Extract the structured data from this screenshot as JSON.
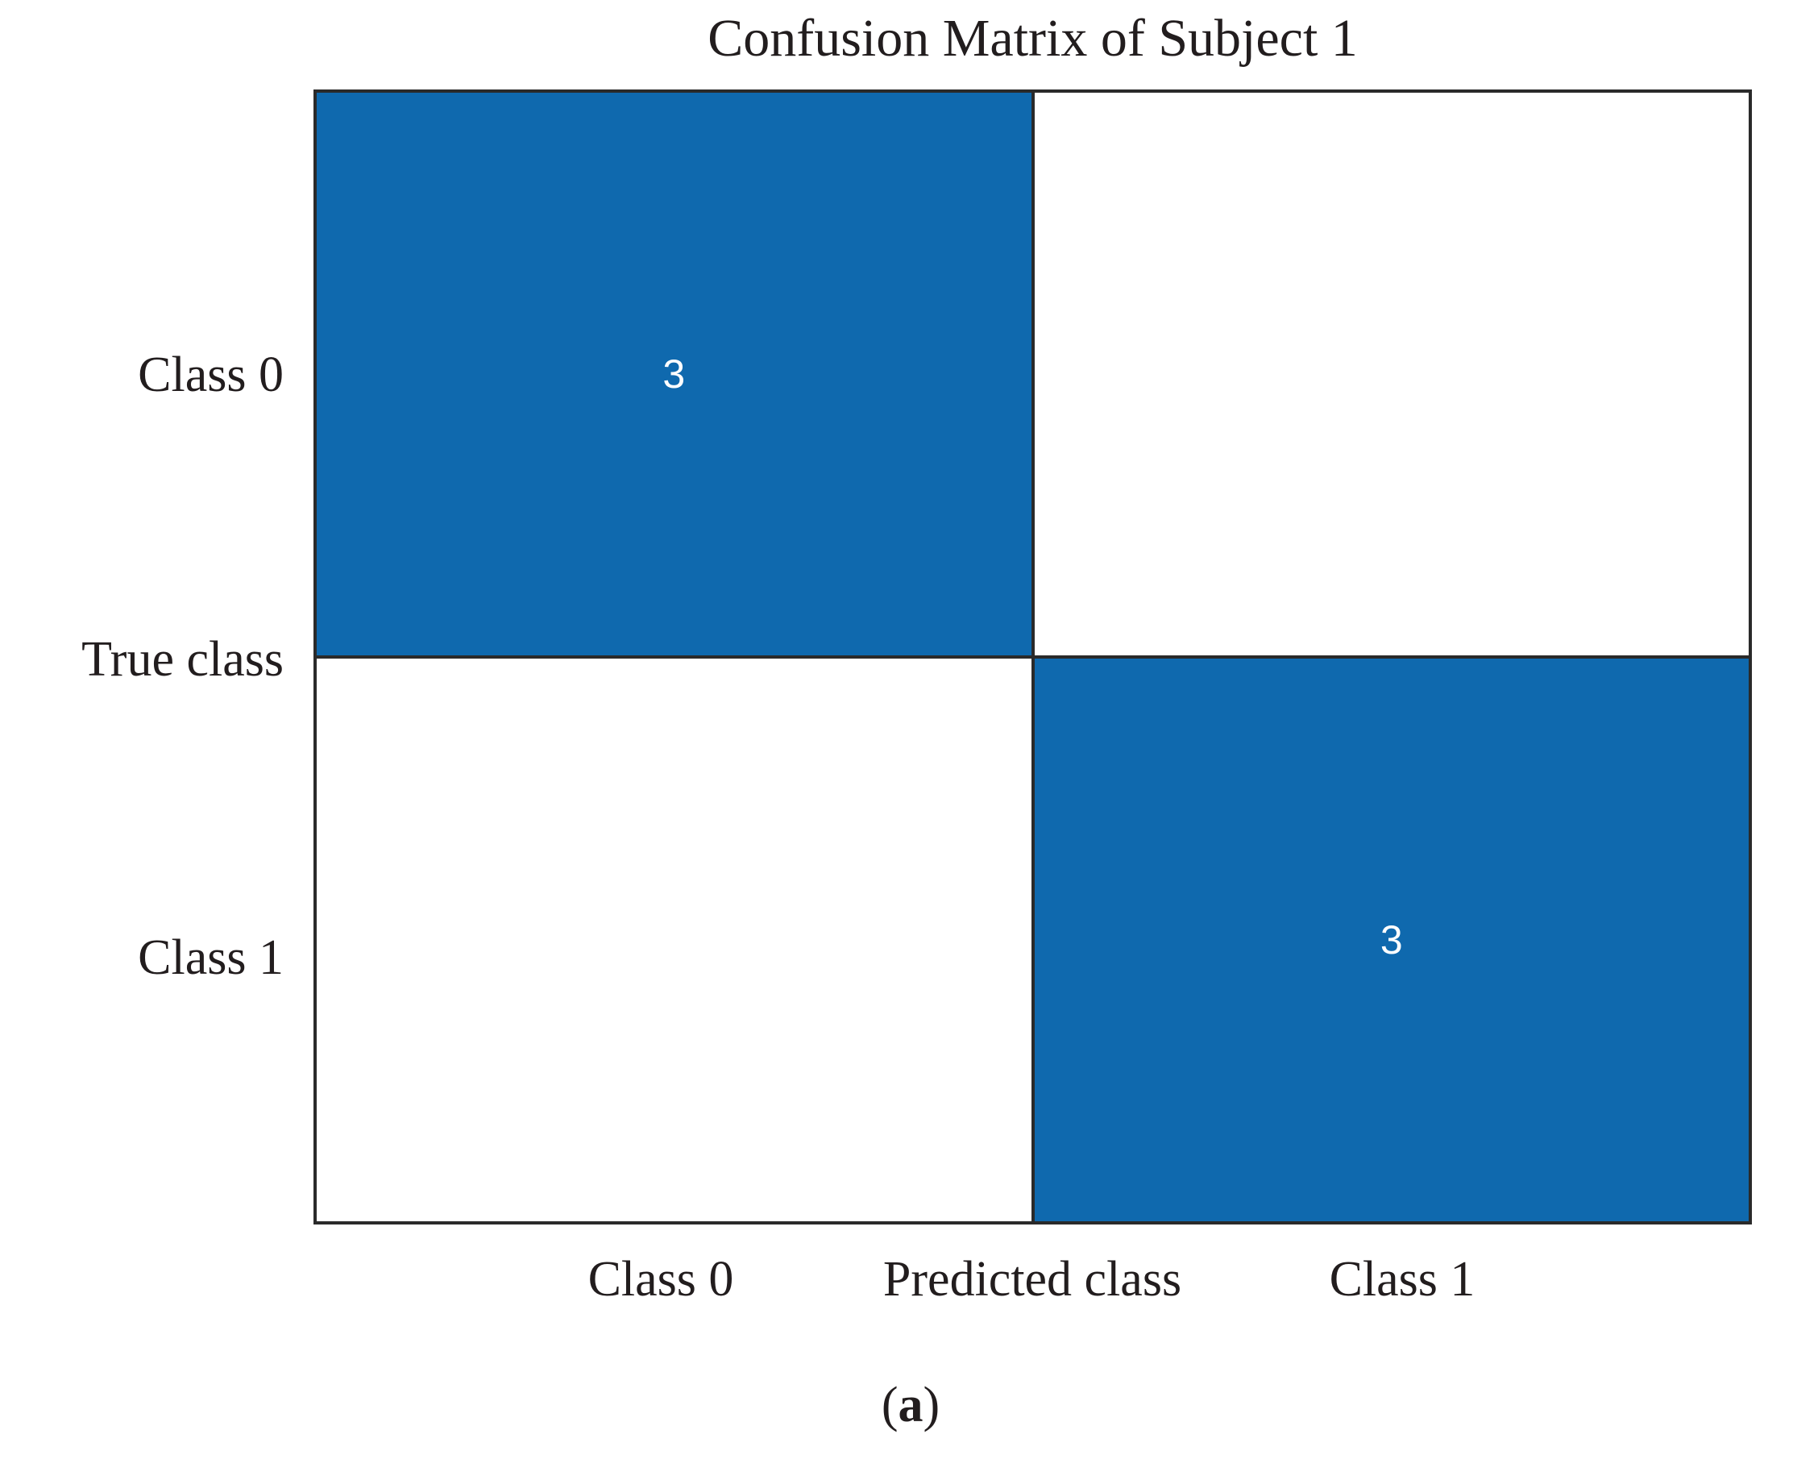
{
  "colors": {
    "cell-filled": "#0f69ae",
    "cell-empty": "#ffffff",
    "grid-line": "#2a2a2a",
    "text": "#221d1e",
    "value-text": "#ffffff"
  },
  "chart_data": {
    "type": "heatmap",
    "title": "Confusion Matrix of Subject 1",
    "xlabel": "Predicted class",
    "ylabel": "True class",
    "x_categories": [
      "Class 0",
      "Class 1"
    ],
    "y_categories": [
      "Class 0",
      "Class 1"
    ],
    "matrix": [
      [
        3,
        null
      ],
      [
        null,
        3
      ]
    ],
    "matrix_display": [
      [
        "3",
        ""
      ],
      [
        "",
        "3"
      ]
    ],
    "filled_cells": [
      [
        true,
        false
      ],
      [
        false,
        true
      ]
    ],
    "grid": "off",
    "legend": "none",
    "colorbar": "none"
  },
  "caption": {
    "open": "(",
    "letter": "a",
    "close": ")"
  }
}
